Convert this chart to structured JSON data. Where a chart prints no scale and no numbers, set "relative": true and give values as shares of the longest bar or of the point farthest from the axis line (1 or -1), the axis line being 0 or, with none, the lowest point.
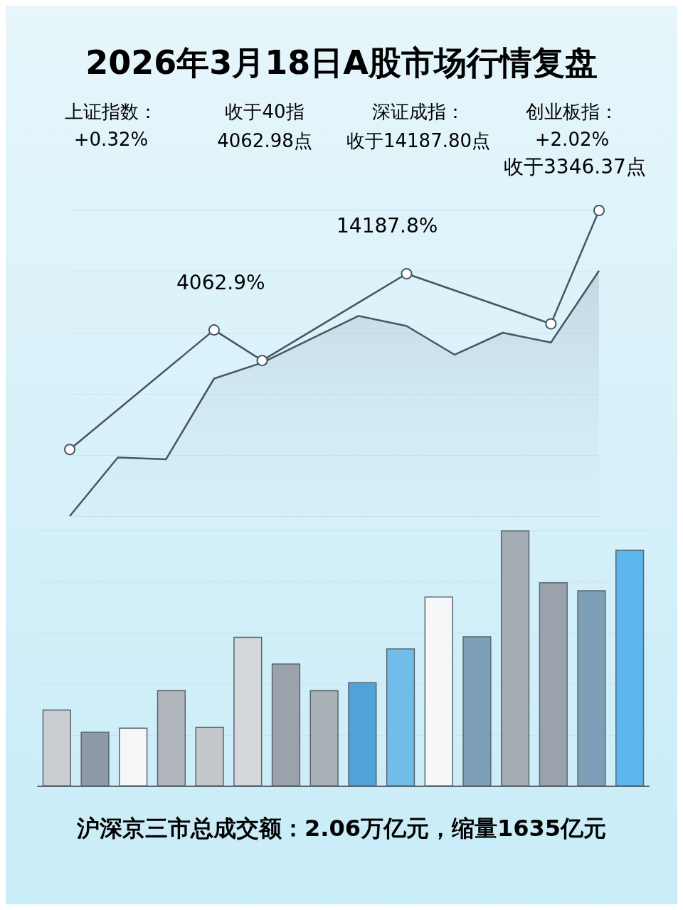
{
  "chart_data": [
    {
      "type": "line",
      "title": "2026年3月18日A股市场行情复盘",
      "relative": true,
      "grid": "y",
      "line_style": "solid",
      "annotations": [
        "上证指数：",
        "收于40指",
        "深证成指：",
        "创业板指：",
        "+0.32%",
        "4062.98点",
        "收于14187.80点",
        "+2.02%",
        "4062.9%",
        "14187.8%",
        "收于3346.37点"
      ],
      "categories": [
        null,
        null,
        null,
        null,
        null,
        null,
        null,
        null,
        null,
        null,
        null,
        null
      ],
      "series": [
        {
          "type": "area",
          "marker": "none",
          "color": "#4a5560",
          "values": [
            0,
            0.192,
            0.186,
            0.45,
            0.502,
            0.579,
            0.655,
            0.622,
            0.528,
            0.6,
            0.568,
            0.803
          ]
        },
        {
          "type": "line",
          "marker": "circle",
          "color": "#4a5560",
          "values": [
            0.218,
            null,
            null,
            0.609,
            0.509,
            null,
            null,
            0.793,
            null,
            null,
            0.629,
            1
          ]
        }
      ]
    },
    {
      "type": "bar",
      "relative": true,
      "grid": "y",
      "annotations": [
        "沪深京三市总成交额：2.06万亿元，缩量1635亿元"
      ],
      "categories": [
        null,
        null,
        null,
        null,
        null,
        null,
        null,
        null,
        null,
        null,
        null,
        null,
        null,
        null,
        null,
        null
      ],
      "values": [
        0.3,
        0.213,
        0.229,
        0.376,
        0.232,
        0.584,
        0.48,
        0.376,
        0.407,
        0.539,
        0.742,
        0.586,
        1,
        0.797,
        0.766,
        0.924
      ],
      "colors": [
        "#c9cdd1",
        "#8e9aa5",
        "#f5f7f8",
        "#b0b6bc",
        "#c4c8cc",
        "#d5d8db",
        "#9aa3ab",
        "#a9b0b6",
        "#4fa3d6",
        "#6fbde8",
        "#f5f7f8",
        "#7d9fb8",
        "#a5adb4",
        "#9aa3ab",
        "#7d9fb8",
        "#5ab6ec"
      ]
    }
  ]
}
